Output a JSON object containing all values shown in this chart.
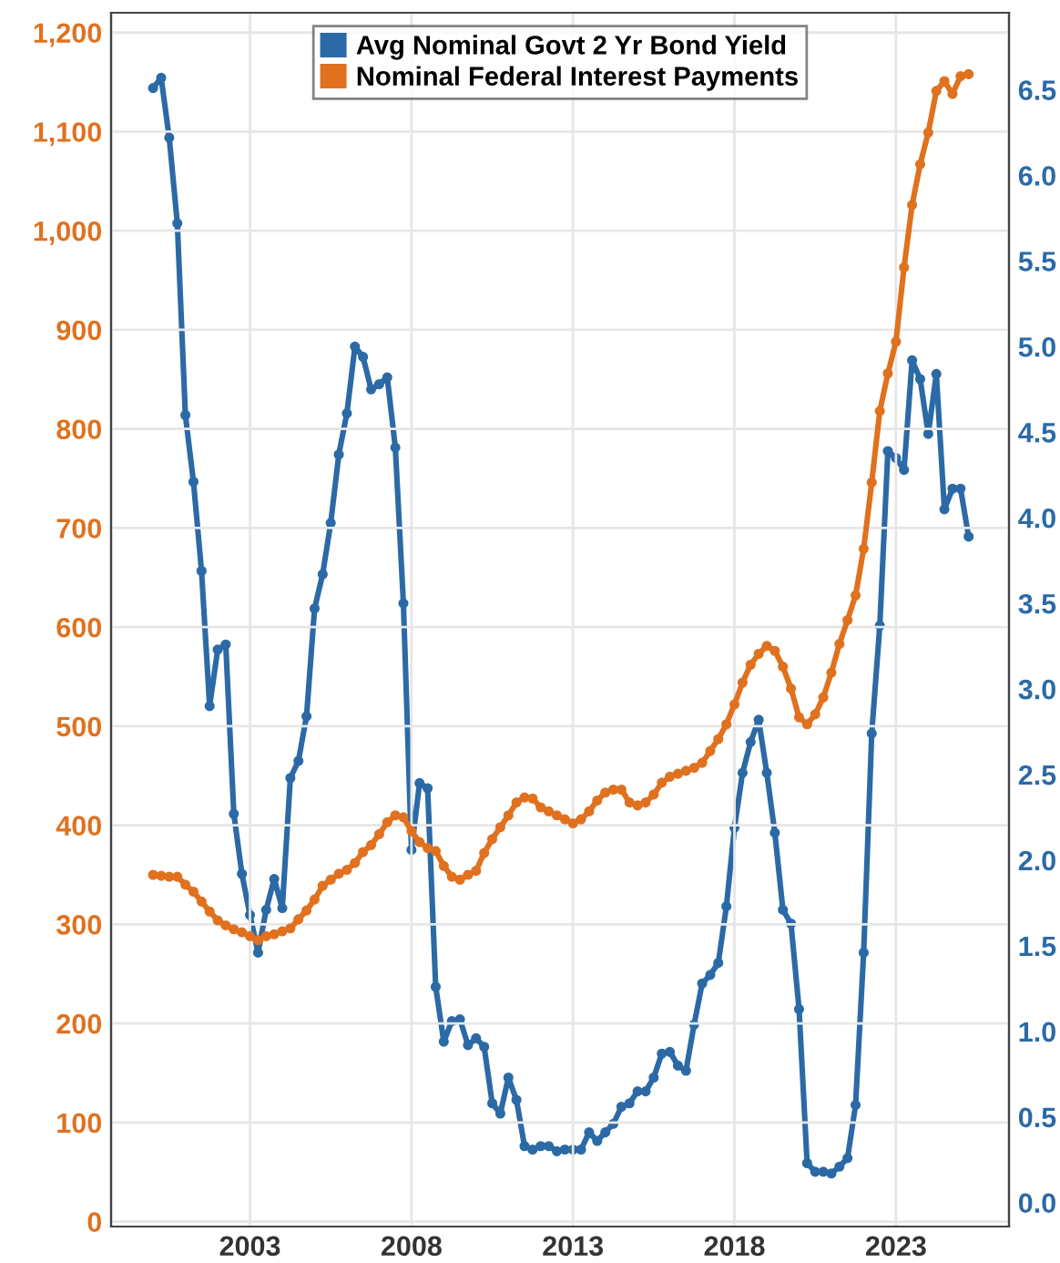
{
  "chart_data": {
    "type": "line",
    "x": [
      2000,
      2000.25,
      2000.5,
      2000.75,
      2001,
      2001.25,
      2001.5,
      2001.75,
      2002,
      2002.25,
      2002.5,
      2002.75,
      2003,
      2003.25,
      2003.5,
      2003.75,
      2004,
      2004.25,
      2004.5,
      2004.75,
      2005,
      2005.25,
      2005.5,
      2005.75,
      2006,
      2006.25,
      2006.5,
      2006.75,
      2007,
      2007.25,
      2007.5,
      2007.75,
      2008,
      2008.25,
      2008.5,
      2008.75,
      2009,
      2009.25,
      2009.5,
      2009.75,
      2010,
      2010.25,
      2010.5,
      2010.75,
      2011,
      2011.25,
      2011.5,
      2011.75,
      2012,
      2012.25,
      2012.5,
      2012.75,
      2013,
      2013.25,
      2013.5,
      2013.75,
      2014,
      2014.25,
      2014.5,
      2014.75,
      2015,
      2015.25,
      2015.5,
      2015.75,
      2016,
      2016.25,
      2016.5,
      2016.75,
      2017,
      2017.25,
      2017.5,
      2017.75,
      2018,
      2018.25,
      2018.5,
      2018.75,
      2019,
      2019.25,
      2019.5,
      2019.75,
      2020,
      2020.25,
      2020.5,
      2020.75,
      2021,
      2021.25,
      2021.5,
      2021.75,
      2022,
      2022.25,
      2022.5,
      2022.75,
      2023,
      2023.25,
      2023.5,
      2023.75,
      2024,
      2024.25,
      2024.5,
      2024.75,
      2025,
      2025.25
    ],
    "series": [
      {
        "name": "Avg Nominal Govt 2 Yr Bond Yield",
        "color": "#2b6aa6",
        "axis": "y2",
        "values": [
          6.51,
          6.57,
          6.22,
          5.72,
          4.6,
          4.21,
          3.69,
          2.9,
          3.23,
          3.26,
          2.27,
          1.92,
          1.68,
          1.46,
          1.71,
          1.89,
          1.72,
          2.48,
          2.58,
          2.84,
          3.47,
          3.67,
          3.97,
          4.37,
          4.61,
          5.0,
          4.94,
          4.75,
          4.78,
          4.82,
          4.41,
          3.5,
          2.06,
          2.45,
          2.42,
          1.26,
          0.94,
          1.06,
          1.07,
          0.92,
          0.96,
          0.91,
          0.58,
          0.52,
          0.73,
          0.6,
          0.33,
          0.31,
          0.33,
          0.33,
          0.3,
          0.31,
          0.31,
          0.31,
          0.41,
          0.36,
          0.41,
          0.46,
          0.56,
          0.58,
          0.65,
          0.65,
          0.73,
          0.87,
          0.88,
          0.8,
          0.77,
          1.04,
          1.28,
          1.33,
          1.4,
          1.73,
          2.19,
          2.51,
          2.69,
          2.82,
          2.51,
          2.16,
          1.71,
          1.63,
          1.13,
          0.23,
          0.18,
          0.18,
          0.17,
          0.21,
          0.26,
          0.57,
          1.46,
          2.74,
          3.37,
          4.39,
          4.35,
          4.28,
          4.92,
          4.81,
          4.49,
          4.84,
          4.05,
          4.17,
          4.17,
          3.89
        ]
      },
      {
        "name": "Nominal Federal Interest Payments",
        "color": "#e0711f",
        "values": [
          350,
          349,
          348,
          348,
          340,
          333,
          323,
          313,
          304,
          299,
          295,
          292,
          288,
          284,
          288,
          290,
          293,
          296,
          305,
          314,
          325,
          339,
          345,
          351,
          355,
          362,
          373,
          380,
          391,
          403,
          410,
          408,
          394,
          383,
          377,
          374,
          359,
          348,
          345,
          350,
          354,
          372,
          386,
          398,
          410,
          423,
          428,
          427,
          418,
          414,
          410,
          406,
          402,
          406,
          414,
          425,
          433,
          436,
          436,
          423,
          420,
          423,
          431,
          443,
          449,
          452,
          455,
          458,
          463,
          475,
          487,
          502,
          522,
          544,
          562,
          573,
          581,
          576,
          560,
          538,
          509,
          502,
          512,
          529,
          554,
          583,
          607,
          632,
          679,
          746,
          818,
          856,
          888,
          963,
          1026,
          1067,
          1099,
          1141,
          1151,
          1138,
          1156,
          1158
        ]
      }
    ],
    "xlim": [
      1998.7,
      2026.5
    ],
    "xticks": [
      2003,
      2008,
      2013,
      2018,
      2023
    ],
    "ylim": [
      -5,
      1220
    ],
    "yticks": [
      {
        "value": 0,
        "label": "0"
      },
      {
        "value": 100,
        "label": "100"
      },
      {
        "value": 200,
        "label": "200"
      },
      {
        "value": 300,
        "label": "300"
      },
      {
        "value": 400,
        "label": "400"
      },
      {
        "value": 500,
        "label": "500"
      },
      {
        "value": 600,
        "label": "600"
      },
      {
        "value": 700,
        "label": "700"
      },
      {
        "value": 800,
        "label": "800"
      },
      {
        "value": 900,
        "label": "900"
      },
      {
        "value": 1000,
        "label": "1,000"
      },
      {
        "value": 1100,
        "label": "1,100"
      },
      {
        "value": 1200,
        "label": "1,200"
      }
    ],
    "y2lim": [
      -0.14,
      6.95
    ],
    "y2ticks": [
      {
        "value": 0,
        "label": "0.0"
      },
      {
        "value": 0.5,
        "label": "0.5"
      },
      {
        "value": 1,
        "label": "1.0"
      },
      {
        "value": 1.5,
        "label": "1.5"
      },
      {
        "value": 2,
        "label": "2.0"
      },
      {
        "value": 2.5,
        "label": "2.5"
      },
      {
        "value": 3,
        "label": "3.0"
      },
      {
        "value": 3.5,
        "label": "3.5"
      },
      {
        "value": 4,
        "label": "4.0"
      },
      {
        "value": 4.5,
        "label": "4.5"
      },
      {
        "value": 5,
        "label": "5.0"
      },
      {
        "value": 5.5,
        "label": "5.5"
      },
      {
        "value": 6,
        "label": "6.0"
      },
      {
        "value": 6.5,
        "label": "6.5"
      }
    ],
    "grid": true,
    "legend": "top",
    "marker": "circle",
    "line_style": "solid"
  }
}
